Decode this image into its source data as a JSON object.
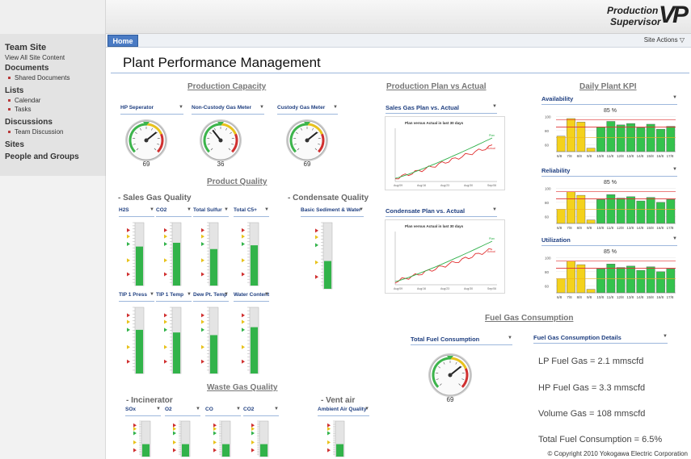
{
  "header": {
    "logo_line1": "Production",
    "logo_line2": "Supervisor",
    "logo_mark": "VP"
  },
  "nav": {
    "home": "Home",
    "site_actions": "Site Actions"
  },
  "sidebar": {
    "site_title": "Team Site",
    "view_all": "View All Site Content",
    "documents": "Documents",
    "shared_documents": "Shared Documents",
    "lists": "Lists",
    "calendar": "Calendar",
    "tasks": "Tasks",
    "discussions": "Discussions",
    "team_discussion": "Team Discussion",
    "sites": "Sites",
    "people": "People and Groups"
  },
  "page_title": "Plant Performance Management",
  "production_capacity": {
    "title": "Production Capacity",
    "gauges": [
      {
        "label": "HP Seperator",
        "value": "69",
        "level": 0.69
      },
      {
        "label": "Non-Custody Gas Meter",
        "value": "36",
        "level": 0.36
      },
      {
        "label": "Custody Gas Meter",
        "value": "69",
        "level": 0.69
      }
    ]
  },
  "product_quality": {
    "title": "Product Quality",
    "sales_gas_title": "- Sales Gas Quality",
    "condensate_title": "- Condensate Quality",
    "row1": [
      {
        "label": "H2S",
        "level": 0.62
      },
      {
        "label": "CO2",
        "level": 0.68
      },
      {
        "label": "Total Sulfur",
        "level": 0.58
      },
      {
        "label": "Total C5+",
        "level": 0.64
      }
    ],
    "condensate": [
      {
        "label": "Basic Sediment & Water",
        "level": 0.42
      }
    ],
    "row2": [
      {
        "label": "TIP 1 Press",
        "level": 0.66
      },
      {
        "label": "TIP 1 Temp",
        "level": 0.62
      },
      {
        "label": "Dew Pt. Temp",
        "level": 0.58
      },
      {
        "label": "Water Content",
        "level": 0.7
      }
    ]
  },
  "waste_gas": {
    "title": "Waste Gas Quality",
    "incinerator_title": "- Incinerator",
    "vent_title": "- Vent air",
    "incinerator": [
      {
        "label": "SOx",
        "level": 0.35
      },
      {
        "label": "O2",
        "level": 0.35
      },
      {
        "label": "CO",
        "level": 0.35
      },
      {
        "label": "CO2",
        "level": 0.35
      }
    ],
    "vent": [
      {
        "label": "Ambient Air Quality",
        "level": 0.35
      }
    ]
  },
  "production_plan": {
    "title": "Production Plan vs Actual",
    "sales_label": "Sales Gas Plan vs. Actual",
    "condensate_label": "Condensate Plan vs. Actual",
    "chart_caption": "Plan versus Actual in last 30 days",
    "legend_plan": "Plan",
    "legend_actual": "Actual",
    "x_ticks": [
      "Aug/09",
      "Aug/16",
      "Aug/23",
      "Aug/30",
      "Sep/06"
    ]
  },
  "daily_kpi": {
    "title": "Daily Plant KPI",
    "charts": [
      {
        "label": "Availability",
        "pct": "85 %",
        "ticks": [
          "100",
          "80",
          "60"
        ],
        "days": [
          "6/8",
          "7/8",
          "8/8",
          "9/8",
          "10/8",
          "11/8",
          "12/8",
          "13/8",
          "14/8",
          "15/8",
          "16/8",
          "17/8"
        ],
        "values": [
          72,
          97,
          92,
          55,
          85,
          93,
          88,
          90,
          84,
          89,
          82,
          86
        ]
      },
      {
        "label": "Reliability",
        "pct": "85 %",
        "ticks": [
          "100",
          "80",
          "60"
        ],
        "days": [
          "6/8",
          "7/8",
          "8/8",
          "9/8",
          "10/8",
          "11/8",
          "12/8",
          "13/8",
          "14/8",
          "15/8",
          "16/8",
          "17/8"
        ],
        "values": [
          70,
          95,
          90,
          55,
          84,
          91,
          86,
          88,
          82,
          87,
          80,
          84
        ]
      },
      {
        "label": "Utilization",
        "pct": "85 %",
        "ticks": [
          "100",
          "80",
          "60"
        ],
        "days": [
          "6/8",
          "7/8",
          "8/8",
          "9/8",
          "10/8",
          "11/8",
          "12/8",
          "13/8",
          "14/8",
          "15/8",
          "16/8",
          "17/8"
        ],
        "values": [
          70,
          95,
          90,
          55,
          84,
          91,
          86,
          88,
          82,
          87,
          80,
          84
        ]
      }
    ]
  },
  "fuel_gas": {
    "title": "Fuel Gas Consumption",
    "total_label": "Total Fuel Consumption",
    "details_label": "Fuel Gas Consumption Details",
    "gauge_value": "69",
    "gauge_level": 0.69,
    "lines": [
      "LP Fuel Gas = 2.1  mmscfd",
      "HP Fuel Gas = 3.3  mmscfd",
      "Volume Gas = 108  mmscfd",
      "Total Fuel Consumption  = 6.5%"
    ]
  },
  "footer": {
    "copyright": "© Copyright 2010 Yokogawa Electric Corporation"
  }
}
